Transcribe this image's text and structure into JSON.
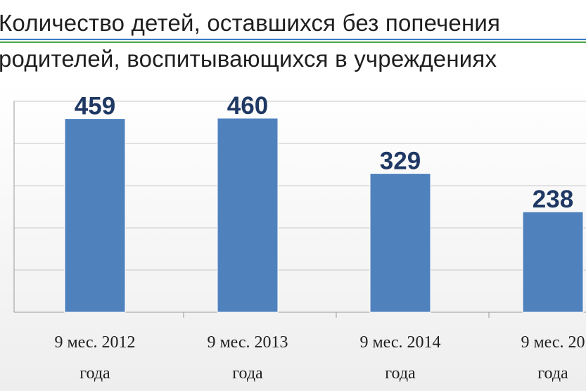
{
  "chart_data": {
    "type": "bar",
    "title_lines": [
      "Количество детей, оставшихся без попечения",
      "родителей, воспитывающихся в учреждениях"
    ],
    "categories": [
      [
        "9 мес. 2012",
        "года"
      ],
      [
        "9 мес. 2013",
        "года"
      ],
      [
        "9 мес. 2014",
        "года"
      ],
      [
        "9 мес. 20",
        "года"
      ]
    ],
    "values": [
      459,
      460,
      329,
      238
    ],
    "ylim": [
      0,
      500
    ],
    "grid": true,
    "bar_color": "#4f81bd",
    "label_color": "#1f3864"
  }
}
